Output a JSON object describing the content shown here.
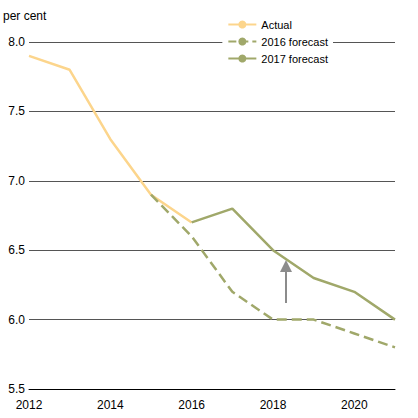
{
  "chart_data": {
    "type": "line",
    "y_label": "per cent",
    "x": [
      2012,
      2013,
      2014,
      2015,
      2016,
      2017,
      2018,
      2019,
      2020,
      2021
    ],
    "series": [
      {
        "name": "Actual",
        "color": "#fcd58c",
        "line_style": "solid",
        "values": [
          7.9,
          7.8,
          7.3,
          6.9,
          6.7,
          null,
          null,
          null,
          null,
          null
        ]
      },
      {
        "name": "2016 forecast",
        "color": "#a0a86a",
        "line_style": "dashed",
        "values": [
          null,
          null,
          null,
          6.9,
          6.6,
          6.2,
          6.0,
          6.0,
          5.9,
          5.8
        ]
      },
      {
        "name": "2017 forecast",
        "color": "#a0a86a",
        "line_style": "solid",
        "values": [
          null,
          null,
          null,
          null,
          6.7,
          6.8,
          6.5,
          6.3,
          6.2,
          6.0
        ]
      }
    ],
    "xlim": [
      2012,
      2021
    ],
    "xticks": [
      2012,
      2014,
      2016,
      2018,
      2020
    ],
    "ylim": [
      5.5,
      8.0
    ],
    "yticks": [
      5.5,
      {
        "value": 6,
        "label": "6.0"
      },
      6.5,
      {
        "value": 7,
        "label": "7.0"
      },
      7.5,
      {
        "value": 8,
        "label": "8.0"
      }
    ],
    "grid": true,
    "legend": "top-right"
  }
}
